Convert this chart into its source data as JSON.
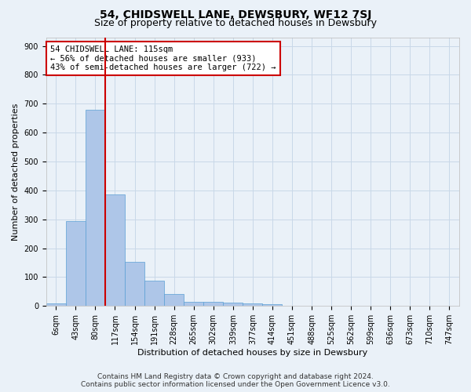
{
  "title": "54, CHIDSWELL LANE, DEWSBURY, WF12 7SJ",
  "subtitle": "Size of property relative to detached houses in Dewsbury",
  "xlabel": "Distribution of detached houses by size in Dewsbury",
  "ylabel": "Number of detached properties",
  "footer_line1": "Contains HM Land Registry data © Crown copyright and database right 2024.",
  "footer_line2": "Contains public sector information licensed under the Open Government Licence v3.0.",
  "bin_labels": [
    "6sqm",
    "43sqm",
    "80sqm",
    "117sqm",
    "154sqm",
    "191sqm",
    "228sqm",
    "265sqm",
    "302sqm",
    "339sqm",
    "377sqm",
    "414sqm",
    "451sqm",
    "488sqm",
    "525sqm",
    "562sqm",
    "599sqm",
    "636sqm",
    "673sqm",
    "710sqm",
    "747sqm"
  ],
  "bar_heights": [
    8,
    293,
    678,
    385,
    152,
    88,
    40,
    15,
    15,
    12,
    10,
    5,
    0,
    0,
    0,
    0,
    0,
    0,
    0,
    0,
    0
  ],
  "bar_color": "#aec6e8",
  "bar_edge_color": "#5a9fd4",
  "vline_pos": 2.5,
  "vline_color": "#cc0000",
  "annotation_text": "54 CHIDSWELL LANE: 115sqm\n← 56% of detached houses are smaller (933)\n43% of semi-detached houses are larger (722) →",
  "annotation_box_color": "#ffffff",
  "annotation_box_edge": "#cc0000",
  "ylim": [
    0,
    930
  ],
  "yticks": [
    0,
    100,
    200,
    300,
    400,
    500,
    600,
    700,
    800,
    900
  ],
  "grid_color": "#c8d8e8",
  "bg_color": "#eaf1f8",
  "plot_bg_color": "#eaf1f8",
  "title_fontsize": 10,
  "subtitle_fontsize": 9,
  "axis_label_fontsize": 8,
  "tick_fontsize": 7,
  "annotation_fontsize": 7.5,
  "footer_fontsize": 6.5
}
